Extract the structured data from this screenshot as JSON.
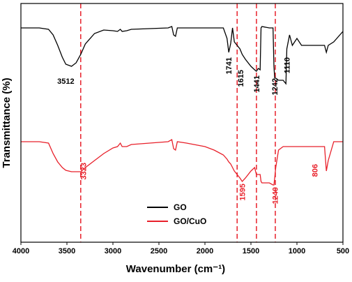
{
  "chart_data": {
    "type": "line",
    "xlabel": "Wavenumber (cm⁻¹)",
    "ylabel": "Transmittance (%)",
    "xlim": [
      4000,
      500
    ],
    "xticks": [
      4000,
      3500,
      3000,
      2500,
      2000,
      1500,
      1000,
      500
    ],
    "ylim": [
      0,
      342
    ],
    "legend": "lower center",
    "vlines": [
      3350,
      1650,
      1440,
      1235
    ],
    "vline_color": "#e8202a",
    "x": [
      4000,
      3800,
      3700,
      3650,
      3600,
      3550,
      3512,
      3450,
      3400,
      3350,
      3300,
      3200,
      3100,
      3000,
      2950,
      2920,
      2900,
      2850,
      2800,
      2600,
      2400,
      2360,
      2340,
      2320,
      2300,
      2200,
      2000,
      1900,
      1800,
      1760,
      1741,
      1720,
      1700,
      1680,
      1650,
      1620,
      1595,
      1560,
      1500,
      1460,
      1441,
      1420,
      1400,
      1390,
      1380,
      1300,
      1260,
      1250,
      1242,
      1230,
      1200,
      1150,
      1120,
      1110,
      1080,
      1050,
      1000,
      950,
      900,
      800,
      700,
      680,
      660,
      600,
      500
    ],
    "series": [
      {
        "name": "GO",
        "color": "#000000",
        "values": [
          307,
          307,
          305,
          297,
          282,
          265,
          255,
          252,
          257,
          269,
          284,
          299,
          304,
          303,
          302,
          305,
          302,
          303,
          305,
          306,
          307,
          309,
          297,
          295,
          307,
          307,
          307,
          307,
          307,
          292,
          272,
          285,
          307,
          287,
          282,
          277,
          269,
          262,
          252,
          247,
          245,
          249,
          247,
          307,
          309,
          307,
          307,
          252,
          235,
          235,
          232,
          232,
          227,
          277,
          297,
          282,
          292,
          282,
          282,
          282,
          282,
          272,
          282,
          287,
          302
        ],
        "annotations": [
          {
            "text": "3512",
            "x": 3512,
            "y": 237,
            "rotate": false
          },
          {
            "text": "1741",
            "x": 1741,
            "y": 265,
            "rotate": true
          },
          {
            "text": "1615",
            "x": 1615,
            "y": 247,
            "rotate": true
          },
          {
            "text": "1441",
            "x": 1441,
            "y": 239,
            "rotate": true
          },
          {
            "text": "1242",
            "x": 1242,
            "y": 235,
            "rotate": true
          },
          {
            "text": "1110",
            "x": 1110,
            "y": 265,
            "rotate": true
          }
        ]
      },
      {
        "name": "GO/CuO",
        "color": "#e8202a",
        "values": [
          144,
          144,
          142,
          127,
          115,
          107,
          103,
          101,
          101,
          101,
          107,
          117,
          127,
          135,
          137,
          142,
          137,
          137,
          140,
          142,
          144,
          147,
          134,
          132,
          144,
          142,
          137,
          132,
          125,
          119,
          115,
          112,
          107,
          102,
          97,
          92,
          87,
          92,
          102,
          107,
          97,
          97,
          97,
          87,
          85,
          85,
          82,
          82,
          92,
          107,
          132,
          137,
          137,
          137,
          137,
          137,
          137,
          137,
          137,
          137,
          137,
          102,
          117,
          144,
          144
        ],
        "annotations": [
          {
            "text": "3323",
            "x": 3323,
            "y": 114,
            "rotate": true
          },
          {
            "text": "1595",
            "x": 1595,
            "y": 84,
            "rotate": true
          },
          {
            "text": "1240",
            "x": 1240,
            "y": 79,
            "rotate": true
          },
          {
            "text": "806",
            "x": 806,
            "y": 112,
            "rotate": true
          }
        ]
      }
    ]
  }
}
